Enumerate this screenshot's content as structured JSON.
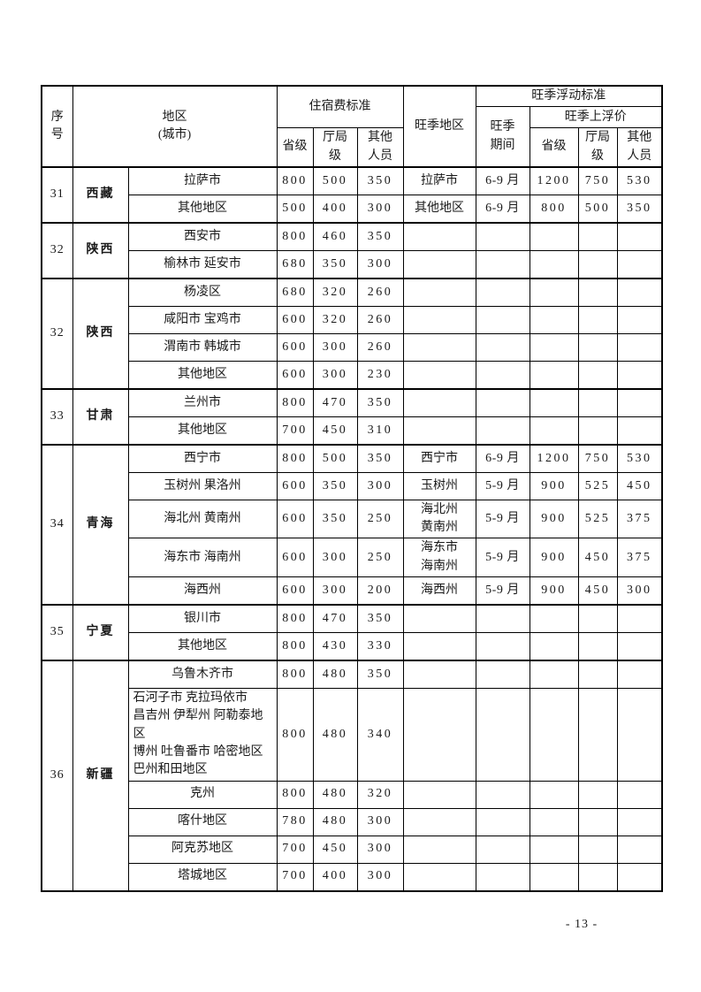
{
  "page": {
    "number_label": "- 13 -"
  },
  "table": {
    "header": {
      "col_no": "序\n号",
      "region": "地区\n(城市)",
      "lodging": "住宿费标准",
      "provincial": "省级",
      "bureau": "厅局\n级",
      "other": "其他\n人员",
      "peak_region": "旺季地区",
      "peak_float": "旺季浮动标准",
      "peak_period": "旺季\n期间",
      "peak_markup": "旺季上浮价"
    },
    "blocks": [
      {
        "no": "31",
        "province": "西藏",
        "rows": [
          {
            "city": "拉萨市",
            "prov": "800",
            "bur": "500",
            "oth": "350",
            "peak_area": "拉萨市",
            "period": "6-9 月",
            "p_prov": "1200",
            "p_bur": "750",
            "p_oth": "530"
          },
          {
            "city": "其他地区",
            "prov": "500",
            "bur": "400",
            "oth": "300",
            "peak_area": "其他地区",
            "period": "6-9 月",
            "p_prov": "800",
            "p_bur": "500",
            "p_oth": "350"
          }
        ]
      },
      {
        "no": "32",
        "province": "陕西",
        "rows": [
          {
            "city": "西安市",
            "prov": "800",
            "bur": "460",
            "oth": "350",
            "peak_area": "",
            "period": "",
            "p_prov": "",
            "p_bur": "",
            "p_oth": ""
          },
          {
            "city": "榆林市 延安市",
            "prov": "680",
            "bur": "350",
            "oth": "300",
            "peak_area": "",
            "period": "",
            "p_prov": "",
            "p_bur": "",
            "p_oth": ""
          }
        ]
      },
      {
        "no": "32",
        "province": "陕西",
        "rows": [
          {
            "city": "杨凌区",
            "prov": "680",
            "bur": "320",
            "oth": "260",
            "peak_area": "",
            "period": "",
            "p_prov": "",
            "p_bur": "",
            "p_oth": ""
          },
          {
            "city": "咸阳市 宝鸡市",
            "prov": "600",
            "bur": "320",
            "oth": "260",
            "peak_area": "",
            "period": "",
            "p_prov": "",
            "p_bur": "",
            "p_oth": ""
          },
          {
            "city": "渭南市 韩城市",
            "prov": "600",
            "bur": "300",
            "oth": "260",
            "peak_area": "",
            "period": "",
            "p_prov": "",
            "p_bur": "",
            "p_oth": ""
          },
          {
            "city": "其他地区",
            "prov": "600",
            "bur": "300",
            "oth": "230",
            "peak_area": "",
            "period": "",
            "p_prov": "",
            "p_bur": "",
            "p_oth": ""
          }
        ]
      },
      {
        "no": "33",
        "province": "甘肃",
        "rows": [
          {
            "city": "兰州市",
            "prov": "800",
            "bur": "470",
            "oth": "350",
            "peak_area": "",
            "period": "",
            "p_prov": "",
            "p_bur": "",
            "p_oth": ""
          },
          {
            "city": "其他地区",
            "prov": "700",
            "bur": "450",
            "oth": "310",
            "peak_area": "",
            "period": "",
            "p_prov": "",
            "p_bur": "",
            "p_oth": ""
          }
        ]
      },
      {
        "no": "34",
        "province": "青海",
        "rows": [
          {
            "city": "西宁市",
            "prov": "800",
            "bur": "500",
            "oth": "350",
            "peak_area": "西宁市",
            "period": "6-9 月",
            "p_prov": "1200",
            "p_bur": "750",
            "p_oth": "530"
          },
          {
            "city": "玉树州 果洛州",
            "prov": "600",
            "bur": "350",
            "oth": "300",
            "peak_area": "玉树州",
            "period": "5-9 月",
            "p_prov": "900",
            "p_bur": "525",
            "p_oth": "450"
          },
          {
            "city": "海北州 黄南州",
            "prov": "600",
            "bur": "350",
            "oth": "250",
            "peak_area": "海北州\n黄南州",
            "period": "5-9 月",
            "p_prov": "900",
            "p_bur": "525",
            "p_oth": "375"
          },
          {
            "city": "海东市 海南州",
            "prov": "600",
            "bur": "300",
            "oth": "250",
            "peak_area": "海东市\n海南州",
            "period": "5-9 月",
            "p_prov": "900",
            "p_bur": "450",
            "p_oth": "375"
          },
          {
            "city": "海西州",
            "prov": "600",
            "bur": "300",
            "oth": "200",
            "peak_area": "海西州",
            "period": "5-9 月",
            "p_prov": "900",
            "p_bur": "450",
            "p_oth": "300"
          }
        ]
      },
      {
        "no": "35",
        "province": "宁夏",
        "rows": [
          {
            "city": "银川市",
            "prov": "800",
            "bur": "470",
            "oth": "350",
            "peak_area": "",
            "period": "",
            "p_prov": "",
            "p_bur": "",
            "p_oth": ""
          },
          {
            "city": "其他地区",
            "prov": "800",
            "bur": "430",
            "oth": "330",
            "peak_area": "",
            "period": "",
            "p_prov": "",
            "p_bur": "",
            "p_oth": ""
          }
        ]
      },
      {
        "no": "36",
        "province": "新疆",
        "rows": [
          {
            "city": "乌鲁木齐市",
            "prov": "800",
            "bur": "480",
            "oth": "350",
            "peak_area": "",
            "period": "",
            "p_prov": "",
            "p_bur": "",
            "p_oth": ""
          },
          {
            "city": "石河子市 克拉玛依市\n昌吉州 伊犁州 阿勒泰地区\n博州 吐鲁番市 哈密地区\n巴州和田地区",
            "prov": "800",
            "bur": "480",
            "oth": "340",
            "peak_area": "",
            "period": "",
            "p_prov": "",
            "p_bur": "",
            "p_oth": ""
          },
          {
            "city": "克州",
            "prov": "800",
            "bur": "480",
            "oth": "320",
            "peak_area": "",
            "period": "",
            "p_prov": "",
            "p_bur": "",
            "p_oth": ""
          },
          {
            "city": "喀什地区",
            "prov": "780",
            "bur": "480",
            "oth": "300",
            "peak_area": "",
            "period": "",
            "p_prov": "",
            "p_bur": "",
            "p_oth": ""
          },
          {
            "city": "阿克苏地区",
            "prov": "700",
            "bur": "450",
            "oth": "300",
            "peak_area": "",
            "period": "",
            "p_prov": "",
            "p_bur": "",
            "p_oth": ""
          },
          {
            "city": "塔城地区",
            "prov": "700",
            "bur": "400",
            "oth": "300",
            "peak_area": "",
            "period": "",
            "p_prov": "",
            "p_bur": "",
            "p_oth": ""
          }
        ]
      }
    ]
  }
}
